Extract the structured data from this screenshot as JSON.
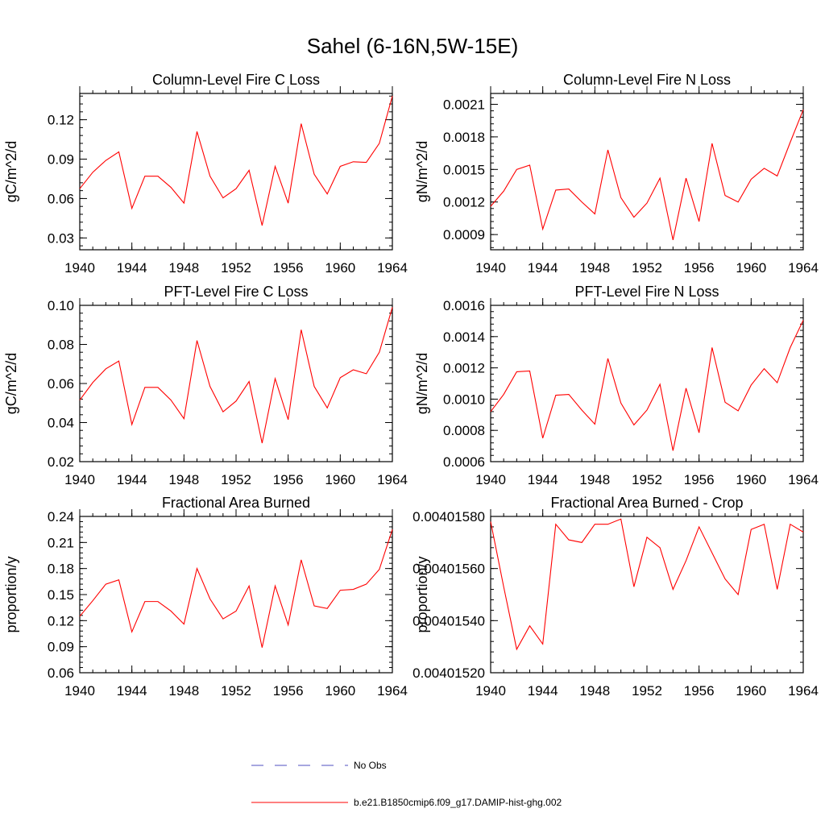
{
  "title": "Sahel (6-16N,5W-15E)",
  "colors": {
    "series": "#ff0000",
    "no_obs": "#4f4fc0",
    "axis": "#000000"
  },
  "legend": [
    {
      "label": "No Obs",
      "style": "dashed",
      "color": "#4f4fc0"
    },
    {
      "label": "b.e21.B1850cmip6.f09_g17.DAMIP-hist-ghg.002",
      "style": "solid",
      "color": "#ff0000"
    }
  ],
  "chart_data": [
    {
      "type": "line",
      "title": "Column-Level Fire C Loss",
      "ylabel": "gC/m^2/d",
      "xlim": [
        1940,
        1964
      ],
      "ylim": [
        0.021,
        0.14
      ],
      "xticks": [
        1940,
        1944,
        1948,
        1952,
        1956,
        1960,
        1964
      ],
      "yticks": [
        0.03,
        0.06,
        0.09,
        0.12
      ],
      "ytick_labels": [
        "0.03",
        "0.06",
        "0.09",
        "0.12"
      ],
      "series": [
        {
          "x": [
            1940,
            1941,
            1942,
            1943,
            1944,
            1945,
            1946,
            1947,
            1948,
            1949,
            1950,
            1951,
            1952,
            1953,
            1954,
            1955,
            1956,
            1957,
            1958,
            1959,
            1960,
            1961,
            1962,
            1963,
            1964
          ],
          "values": [
            0.0675,
            0.08,
            0.089,
            0.0955,
            0.0525,
            0.077,
            0.077,
            0.0685,
            0.0565,
            0.111,
            0.077,
            0.0605,
            0.0675,
            0.0815,
            0.0395,
            0.0845,
            0.0565,
            0.117,
            0.0785,
            0.0635,
            0.0845,
            0.088,
            0.0875,
            0.102,
            0.138
          ]
        }
      ]
    },
    {
      "type": "line",
      "title": "Column-Level Fire N Loss",
      "ylabel": "gN/m^2/d",
      "xlim": [
        1940,
        1964
      ],
      "ylim": [
        0.00076,
        0.0022
      ],
      "xticks": [
        1940,
        1944,
        1948,
        1952,
        1956,
        1960,
        1964
      ],
      "yticks": [
        0.0009,
        0.0012,
        0.0015,
        0.0018,
        0.0021
      ],
      "ytick_labels": [
        "0.0009",
        "0.0012",
        "0.0015",
        "0.0018",
        "0.0021"
      ],
      "series": [
        {
          "x": [
            1940,
            1941,
            1942,
            1943,
            1944,
            1945,
            1946,
            1947,
            1948,
            1949,
            1950,
            1951,
            1952,
            1953,
            1954,
            1955,
            1956,
            1957,
            1958,
            1959,
            1960,
            1961,
            1962,
            1963,
            1964
          ],
          "values": [
            0.00116,
            0.0013,
            0.0015,
            0.00154,
            0.00095,
            0.00131,
            0.00132,
            0.0012,
            0.00109,
            0.00168,
            0.00124,
            0.00106,
            0.00119,
            0.00142,
            0.00085,
            0.00142,
            0.00102,
            0.00174,
            0.00126,
            0.0012,
            0.00141,
            0.00151,
            0.00144,
            0.00175,
            0.00205
          ]
        }
      ]
    },
    {
      "type": "line",
      "title": "PFT-Level Fire C Loss",
      "ylabel": "gC/m^2/d",
      "xlim": [
        1940,
        1964
      ],
      "ylim": [
        0.02,
        0.1
      ],
      "xticks": [
        1940,
        1944,
        1948,
        1952,
        1956,
        1960,
        1964
      ],
      "yticks": [
        0.02,
        0.04,
        0.06,
        0.08,
        0.1
      ],
      "ytick_labels": [
        "0.02",
        "0.04",
        "0.06",
        "0.08",
        "0.10"
      ],
      "series": [
        {
          "x": [
            1940,
            1941,
            1942,
            1943,
            1944,
            1945,
            1946,
            1947,
            1948,
            1949,
            1950,
            1951,
            1952,
            1953,
            1954,
            1955,
            1956,
            1957,
            1958,
            1959,
            1960,
            1961,
            1962,
            1963,
            1964
          ],
          "values": [
            0.0515,
            0.0605,
            0.0675,
            0.0715,
            0.039,
            0.058,
            0.058,
            0.0515,
            0.042,
            0.082,
            0.0585,
            0.0455,
            0.051,
            0.061,
            0.0295,
            0.0625,
            0.0415,
            0.0875,
            0.0585,
            0.0475,
            0.063,
            0.067,
            0.065,
            0.076,
            0.099
          ]
        }
      ]
    },
    {
      "type": "line",
      "title": "PFT-Level Fire N Loss",
      "ylabel": "gN/m^2/d",
      "xlim": [
        1940,
        1964
      ],
      "ylim": [
        0.0006,
        0.0016
      ],
      "xticks": [
        1940,
        1944,
        1948,
        1952,
        1956,
        1960,
        1964
      ],
      "yticks": [
        0.0006,
        0.0008,
        0.001,
        0.0012,
        0.0014,
        0.0016
      ],
      "ytick_labels": [
        "0.0006",
        "0.0008",
        "0.0010",
        "0.0012",
        "0.0014",
        "0.0016"
      ],
      "series": [
        {
          "x": [
            1940,
            1941,
            1942,
            1943,
            1944,
            1945,
            1946,
            1947,
            1948,
            1949,
            1950,
            1951,
            1952,
            1953,
            1954,
            1955,
            1956,
            1957,
            1958,
            1959,
            1960,
            1961,
            1962,
            1963,
            1964
          ],
          "values": [
            0.00092,
            0.00103,
            0.001175,
            0.00118,
            0.00075,
            0.001025,
            0.00103,
            0.00093,
            0.00084,
            0.00126,
            0.000975,
            0.000835,
            0.00093,
            0.001095,
            0.00067,
            0.00107,
            0.000785,
            0.00133,
            0.00098,
            0.000925,
            0.00109,
            0.001195,
            0.001105,
            0.00133,
            0.001505
          ]
        }
      ]
    },
    {
      "type": "line",
      "title": "Fractional Area Burned",
      "ylabel": "proportion/y",
      "xlim": [
        1940,
        1964
      ],
      "ylim": [
        0.06,
        0.24
      ],
      "xticks": [
        1940,
        1944,
        1948,
        1952,
        1956,
        1960,
        1964
      ],
      "yticks": [
        0.06,
        0.09,
        0.12,
        0.15,
        0.18,
        0.21,
        0.24
      ],
      "ytick_labels": [
        "0.06",
        "0.09",
        "0.12",
        "0.15",
        "0.18",
        "0.21",
        "0.24"
      ],
      "series": [
        {
          "x": [
            1940,
            1941,
            1942,
            1943,
            1944,
            1945,
            1946,
            1947,
            1948,
            1949,
            1950,
            1951,
            1952,
            1953,
            1954,
            1955,
            1956,
            1957,
            1958,
            1959,
            1960,
            1961,
            1962,
            1963,
            1964
          ],
          "values": [
            0.125,
            0.143,
            0.162,
            0.167,
            0.107,
            0.142,
            0.142,
            0.131,
            0.116,
            0.18,
            0.145,
            0.122,
            0.131,
            0.16,
            0.089,
            0.16,
            0.115,
            0.19,
            0.137,
            0.134,
            0.155,
            0.156,
            0.162,
            0.179,
            0.225
          ]
        }
      ]
    },
    {
      "type": "line",
      "title": "Fractional Area Burned - Crop",
      "ylabel": "proportion/y",
      "xlim": [
        1940,
        1964
      ],
      "ylim": [
        0.0040152,
        0.0040158
      ],
      "xticks": [
        1940,
        1944,
        1948,
        1952,
        1956,
        1960,
        1964
      ],
      "yticks": [
        0.0040152,
        0.0040154,
        0.0040156,
        0.0040158
      ],
      "ytick_labels": [
        "0.00401520",
        "0.00401540",
        "0.00401560",
        "0.00401580"
      ],
      "series": [
        {
          "x": [
            1940,
            1941,
            1942,
            1943,
            1944,
            1945,
            1946,
            1947,
            1948,
            1949,
            1950,
            1951,
            1952,
            1953,
            1954,
            1955,
            1956,
            1957,
            1958,
            1959,
            1960,
            1961,
            1962,
            1963,
            1964
          ],
          "values": [
            0.00401578,
            0.00401553,
            0.00401529,
            0.00401538,
            0.00401531,
            0.00401577,
            0.00401571,
            0.0040157,
            0.00401577,
            0.00401577,
            0.00401579,
            0.00401553,
            0.00401572,
            0.00401568,
            0.00401552,
            0.00401563,
            0.00401576,
            0.00401566,
            0.00401556,
            0.0040155,
            0.00401575,
            0.00401577,
            0.00401552,
            0.00401577,
            0.00401574
          ]
        }
      ]
    }
  ]
}
